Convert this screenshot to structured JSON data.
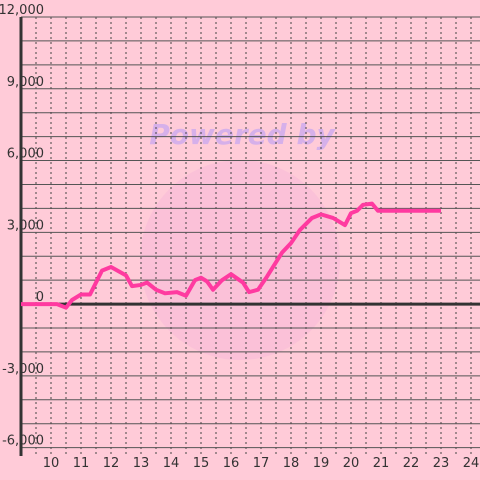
{
  "chart_data": {
    "type": "line",
    "watermark": "Powered by",
    "x": [
      9,
      10,
      10.2,
      10.5,
      10.7,
      11,
      11.3,
      11.7,
      12,
      12.5,
      12.7,
      13,
      13.2,
      13.5,
      13.8,
      14.2,
      14.5,
      14.8,
      15,
      15.2,
      15.4,
      15.7,
      16,
      16.4,
      16.6,
      16.9,
      17.2,
      17.7,
      18,
      18.3,
      18.7,
      19,
      19.4,
      19.8,
      20,
      20.2,
      20.4,
      20.7,
      20.9,
      23
    ],
    "series": [
      {
        "color": "#ff3aa0",
        "values": [
          0,
          0,
          0,
          -150,
          170,
          400,
          400,
          1400,
          1550,
          1200,
          750,
          800,
          900,
          600,
          450,
          500,
          350,
          1000,
          1100,
          950,
          600,
          1000,
          1250,
          900,
          500,
          600,
          1150,
          2150,
          2550,
          3100,
          3600,
          3750,
          3600,
          3300,
          3800,
          3900,
          4150,
          4200,
          3900,
          3900
        ]
      }
    ],
    "xlim": [
      9,
      24.3
    ],
    "xticks": [
      10,
      11,
      12,
      13,
      14,
      15,
      16,
      17,
      18,
      19,
      20,
      21,
      22,
      23,
      24
    ],
    "x_minor_ticks": [
      9.5,
      10.5,
      11.5,
      12.5,
      13.5,
      14.5,
      15.5,
      16.5,
      17.5,
      18.5,
      19.5,
      20.5,
      21.5,
      22.5,
      23.5
    ],
    "ylim": [
      -6350,
      12000
    ],
    "yticks": [
      {
        "value": -6000,
        "label": "-6,000"
      },
      {
        "value": -3000,
        "label": "-3,000"
      },
      0,
      {
        "value": 3000,
        "label": "3,000"
      },
      {
        "value": 6000,
        "label": "6,000"
      },
      {
        "value": 9000,
        "label": "9,000"
      },
      {
        "value": 12000,
        "label": "12,000"
      }
    ],
    "y_minor_ticks": [
      -5000,
      -4000,
      -2000,
      -1000,
      1000,
      2000,
      4000,
      5000,
      7000,
      8000,
      10000,
      11000
    ],
    "grid": true
  }
}
